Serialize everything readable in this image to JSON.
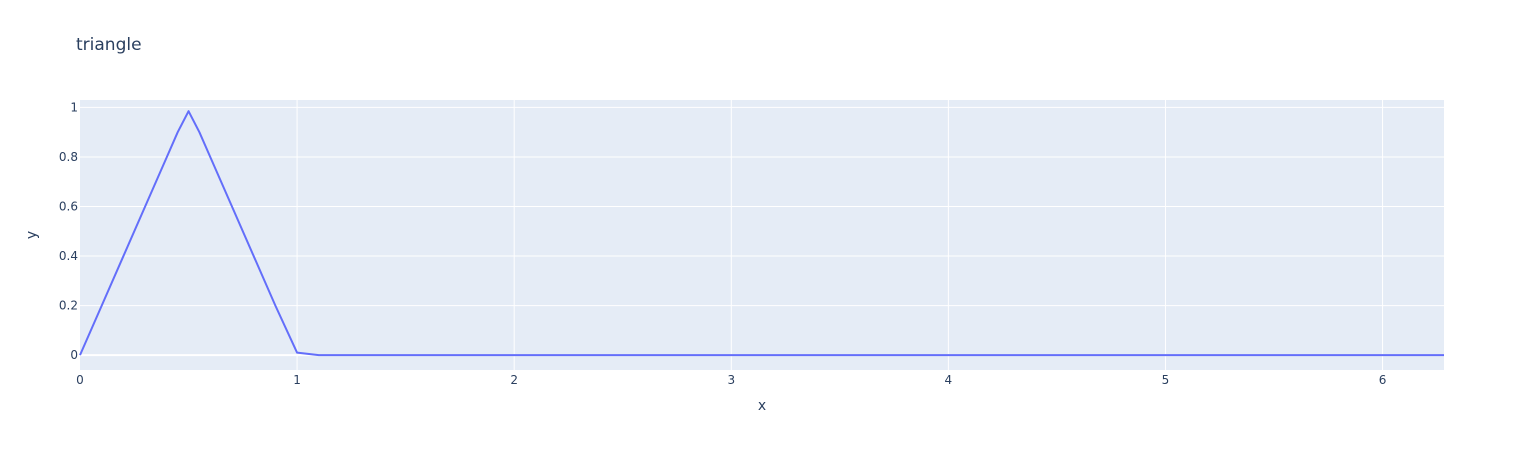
{
  "chart_data": {
    "type": "line",
    "title": "triangle",
    "xlabel": "x",
    "ylabel": "y",
    "xlim": [
      0,
      6.283
    ],
    "ylim": [
      -0.06,
      1.03
    ],
    "x_ticks": [
      "0",
      "1",
      "2",
      "3",
      "4",
      "5",
      "6"
    ],
    "y_ticks": [
      "0",
      "0.2",
      "0.4",
      "0.6",
      "0.8",
      "1"
    ],
    "grid": true,
    "series": [
      {
        "color": "#636efa",
        "x": [
          0,
          0.1,
          0.2,
          0.3,
          0.4,
          0.45,
          0.5,
          0.55,
          0.6,
          0.7,
          0.8,
          0.9,
          1.0,
          1.1,
          2,
          3,
          4,
          5,
          6,
          6.283
        ],
        "y": [
          0,
          0.2,
          0.4,
          0.6,
          0.8,
          0.9,
          0.985,
          0.9,
          0.8,
          0.6,
          0.4,
          0.2,
          0.01,
          0,
          0,
          0,
          0,
          0,
          0,
          0
        ]
      }
    ]
  }
}
